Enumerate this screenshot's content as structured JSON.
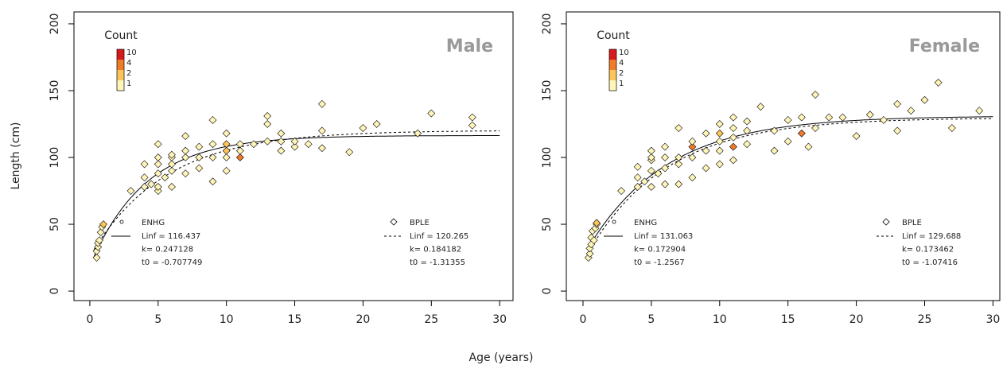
{
  "chart_data": [
    {
      "type": "scatter",
      "title": "Male",
      "ylabel": "Length (cm)",
      "xlabel": "Age (years)",
      "legend_title": "Count",
      "count_levels": [
        10,
        4,
        2,
        1
      ],
      "count_colors": [
        "#d7191c",
        "#f07c2a",
        "#fdc45a",
        "#fff5b8"
      ],
      "xlim": [
        -1.16,
        30.98
      ],
      "ylim": [
        -7.1,
        208.9
      ],
      "xticks": [
        0,
        5,
        10,
        15,
        20,
        25,
        30
      ],
      "yticks": [
        0,
        50,
        100,
        150,
        200
      ],
      "x": [
        0.5,
        0.5,
        0.6,
        0.6,
        0.7,
        0.8,
        0.9,
        1.0,
        3,
        4,
        4,
        4,
        4.5,
        5,
        5,
        5,
        5,
        5,
        5,
        5.5,
        6,
        6,
        6,
        6,
        6,
        7,
        7,
        7,
        7,
        8,
        8,
        8,
        9,
        9,
        9,
        9,
        10,
        10,
        10,
        10,
        10,
        11,
        11,
        11,
        12,
        13,
        13,
        13,
        14,
        14,
        14,
        15,
        15,
        16,
        17,
        17,
        17,
        19,
        20,
        21,
        24,
        25,
        28,
        28
      ],
      "y": [
        25,
        30,
        33,
        36,
        38,
        44,
        48,
        50,
        75,
        78,
        85,
        95,
        80,
        75,
        78,
        88,
        95,
        100,
        110,
        85,
        78,
        90,
        95,
        100,
        102,
        88,
        100,
        105,
        116,
        92,
        100,
        108,
        82,
        100,
        110,
        128,
        90,
        100,
        105,
        110,
        118,
        100,
        105,
        110,
        110,
        112,
        125,
        131,
        105,
        112,
        118,
        108,
        112,
        110,
        107,
        120,
        140,
        104,
        122,
        125,
        118,
        133,
        124,
        130
      ],
      "counts": [
        1,
        1,
        1,
        1,
        1,
        1,
        1,
        2,
        1,
        1,
        1,
        1,
        1,
        1,
        1,
        1,
        1,
        1,
        1,
        1,
        1,
        1,
        1,
        1,
        1,
        1,
        1,
        1,
        1,
        1,
        1,
        1,
        1,
        1,
        1,
        1,
        1,
        1,
        2,
        2,
        1,
        4,
        1,
        1,
        1,
        1,
        1,
        1,
        1,
        1,
        1,
        1,
        1,
        1,
        1,
        1,
        1,
        1,
        1,
        1,
        1,
        1,
        1,
        1
      ],
      "models": [
        {
          "name": "ENHG",
          "linestyle": "solid",
          "params": [
            {
              "value": 116.437,
              "label": "Linf = 116.437"
            },
            {
              "value": 0.247128,
              "label": "k=  0.247128"
            },
            {
              "value": -0.707749,
              "label": "t0 = -0.707749"
            }
          ]
        },
        {
          "name": "BPLE",
          "linestyle": "dashed",
          "params": [
            {
              "value": 120.265,
              "label": "Linf = 120.265"
            },
            {
              "value": 0.184182,
              "label": "k=  0.184182"
            },
            {
              "value": -1.31355,
              "label": "t0 = -1.31355"
            }
          ]
        }
      ]
    },
    {
      "type": "scatter",
      "title": "Female",
      "legend_title": "Count",
      "count_levels": [
        10,
        4,
        2,
        1
      ],
      "count_colors": [
        "#d7191c",
        "#f07c2a",
        "#fdc45a",
        "#fff5b8"
      ],
      "xlim": [
        -1.22,
        30.5
      ],
      "ylim": [
        -7.1,
        208.9
      ],
      "xticks": [
        0,
        5,
        10,
        15,
        20,
        25,
        30
      ],
      "yticks": [
        0,
        50,
        100,
        150,
        200
      ],
      "x": [
        0.4,
        0.5,
        0.5,
        0.6,
        0.6,
        0.7,
        0.8,
        0.9,
        1.0,
        1.0,
        2.8,
        4,
        4,
        4,
        4.5,
        5,
        5,
        5,
        5,
        5,
        5.5,
        6,
        6,
        6,
        6,
        7,
        7,
        7,
        7,
        8,
        8,
        8,
        8,
        9,
        9,
        9,
        10,
        10,
        10,
        10,
        10,
        11,
        11,
        11,
        11,
        11,
        12,
        12,
        12,
        13,
        14,
        14,
        15,
        15,
        16,
        16,
        16.5,
        17,
        17,
        18,
        19,
        20,
        21,
        22,
        23,
        23,
        24,
        25,
        26,
        27,
        29
      ],
      "y": [
        25,
        28,
        32,
        35,
        40,
        45,
        38,
        47,
        50,
        51,
        75,
        78,
        85,
        93,
        82,
        78,
        90,
        98,
        100,
        105,
        88,
        80,
        92,
        100,
        108,
        80,
        95,
        100,
        122,
        85,
        100,
        108,
        112,
        92,
        105,
        118,
        95,
        105,
        112,
        118,
        125,
        98,
        108,
        115,
        122,
        130,
        110,
        120,
        127,
        138,
        105,
        120,
        128,
        112,
        130,
        118,
        108,
        147,
        122,
        130,
        130,
        116,
        132,
        128,
        120,
        140,
        135,
        143,
        156,
        122,
        135
      ],
      "counts": [
        1,
        1,
        1,
        1,
        1,
        1,
        1,
        1,
        1,
        2,
        1,
        1,
        1,
        1,
        1,
        1,
        1,
        1,
        1,
        1,
        1,
        1,
        1,
        1,
        1,
        1,
        1,
        1,
        1,
        1,
        1,
        4,
        1,
        1,
        1,
        1,
        1,
        1,
        1,
        2,
        1,
        1,
        4,
        1,
        1,
        1,
        1,
        1,
        1,
        1,
        1,
        1,
        1,
        1,
        1,
        4,
        1,
        1,
        1,
        1,
        1,
        1,
        1,
        1,
        1,
        1,
        1,
        1,
        1,
        1,
        1
      ],
      "models": [
        {
          "name": "ENHG",
          "linestyle": "solid",
          "params": [
            {
              "value": 131.063,
              "label": "Linf = 131.063"
            },
            {
              "value": 0.172904,
              "label": "k=  0.172904"
            },
            {
              "value": -1.2567,
              "label": "t0 = -1.2567"
            }
          ]
        },
        {
          "name": "BPLE",
          "linestyle": "dashed",
          "params": [
            {
              "value": 129.688,
              "label": "Linf = 129.688"
            },
            {
              "value": 0.173462,
              "label": "k=  0.173462"
            },
            {
              "value": -1.07416,
              "label": "t0 = -1.07416"
            }
          ]
        }
      ]
    }
  ]
}
